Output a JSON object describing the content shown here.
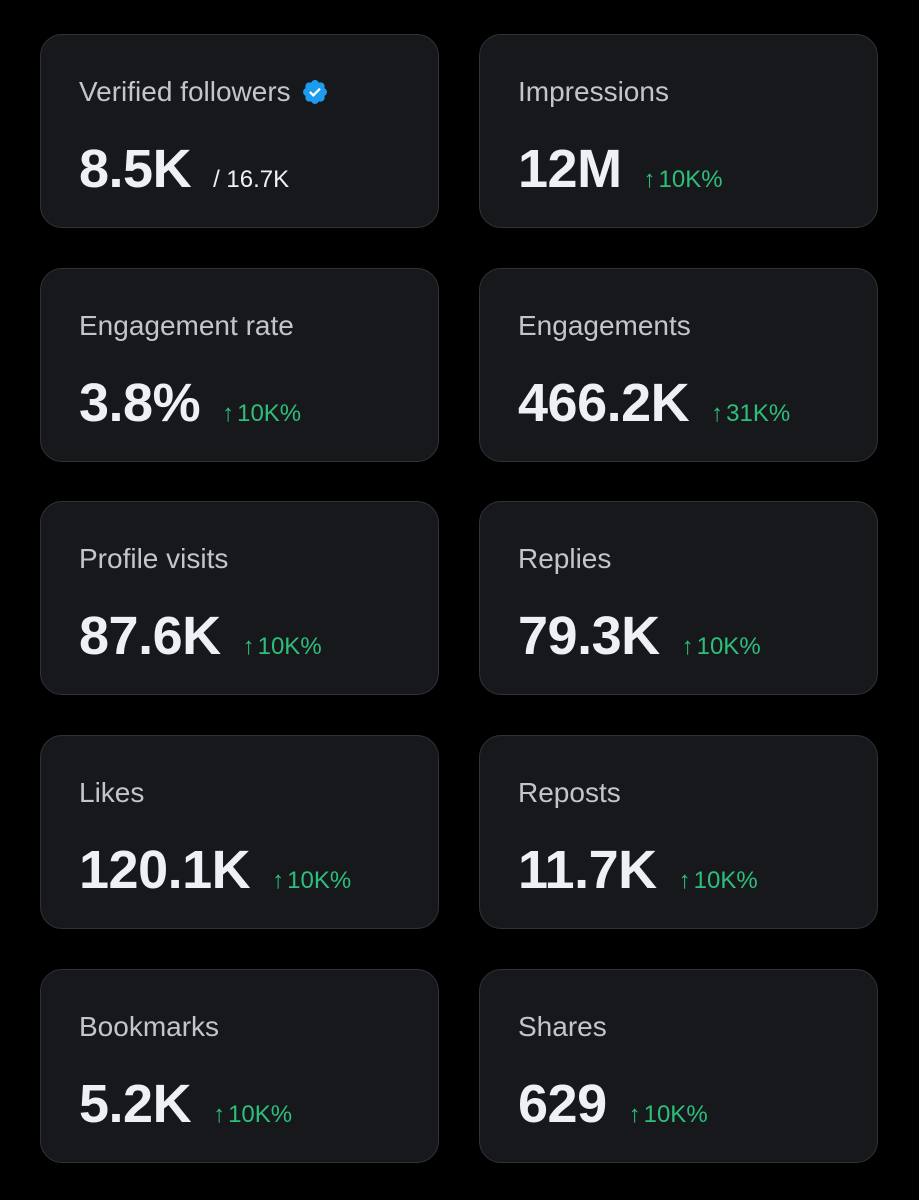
{
  "colors": {
    "background": "#000000",
    "card_background": "#16181c",
    "card_border": "#2f3336",
    "label_text": "#c2c6cb",
    "value_text": "#eef1f4",
    "positive_change": "#2dbf7a",
    "verified_badge": "#1d9bf0"
  },
  "cards": [
    {
      "title": "Verified followers",
      "value": "8.5K",
      "total": "/ 16.7K",
      "badge_icon": "verified-badge-icon"
    },
    {
      "title": "Impressions",
      "value": "12M",
      "change": "10K%",
      "change_icon": "arrow-up-icon"
    },
    {
      "title": "Engagement rate",
      "value": "3.8%",
      "change": "10K%",
      "change_icon": "arrow-up-icon"
    },
    {
      "title": "Engagements",
      "value": "466.2K",
      "change": "31K%",
      "change_icon": "arrow-up-icon"
    },
    {
      "title": "Profile visits",
      "value": "87.6K",
      "change": "10K%",
      "change_icon": "arrow-up-icon"
    },
    {
      "title": "Replies",
      "value": "79.3K",
      "change": "10K%",
      "change_icon": "arrow-up-icon"
    },
    {
      "title": "Likes",
      "value": "120.1K",
      "change": "10K%",
      "change_icon": "arrow-up-icon"
    },
    {
      "title": "Reposts",
      "value": "11.7K",
      "change": "10K%",
      "change_icon": "arrow-up-icon"
    },
    {
      "title": "Bookmarks",
      "value": "5.2K",
      "change": "10K%",
      "change_icon": "arrow-up-icon"
    },
    {
      "title": "Shares",
      "value": "629",
      "change": "10K%",
      "change_icon": "arrow-up-icon"
    }
  ]
}
